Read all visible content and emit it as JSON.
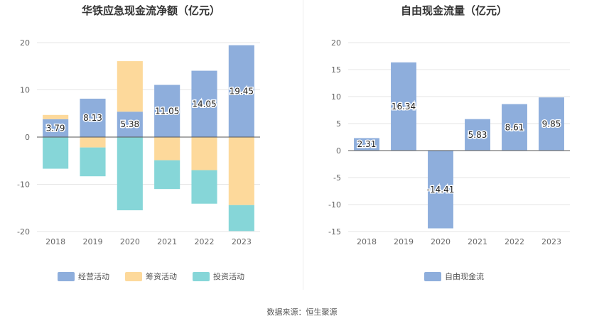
{
  "source_note": "数据来源：恒生聚源",
  "chart_data": [
    {
      "type": "bar",
      "stacked": true,
      "title": "华铁应急现金流净额（亿元）",
      "categories": [
        "2018",
        "2019",
        "2020",
        "2021",
        "2022",
        "2023"
      ],
      "ylim": [
        -20,
        20
      ],
      "yticks": [
        -20,
        -10,
        0,
        10,
        20
      ],
      "grid": true,
      "legend_position": "bottom",
      "series": [
        {
          "name": "经营活动",
          "color": "#8eaedc",
          "values": [
            3.79,
            8.13,
            5.38,
            11.05,
            14.05,
            19.45
          ],
          "labels": [
            "3.79",
            "8.13",
            "5.38",
            "11.05",
            "14.05",
            "19.45"
          ]
        },
        {
          "name": "筹资活动",
          "color": "#fdd99b",
          "values": [
            0.9,
            -2.2,
            10.7,
            -4.9,
            -7.0,
            -14.4
          ]
        },
        {
          "name": "投资活动",
          "color": "#86d6d8",
          "values": [
            -6.7,
            -6.1,
            -15.5,
            -6.1,
            -7.1,
            -5.5
          ]
        }
      ]
    },
    {
      "type": "bar",
      "title": "自由现金流量（亿元）",
      "categories": [
        "2018",
        "2019",
        "2020",
        "2021",
        "2022",
        "2023"
      ],
      "ylim": [
        -15,
        20
      ],
      "yticks": [
        -15,
        -10,
        -5,
        0,
        5,
        10,
        15,
        20
      ],
      "grid": true,
      "legend_position": "bottom",
      "series": [
        {
          "name": "自由现金流",
          "color": "#8eaedc",
          "values": [
            2.31,
            16.34,
            -14.41,
            5.83,
            8.61,
            9.85
          ],
          "labels": [
            "2.31",
            "16.34",
            "-14.41",
            "5.83",
            "8.61",
            "9.85"
          ]
        }
      ]
    }
  ]
}
